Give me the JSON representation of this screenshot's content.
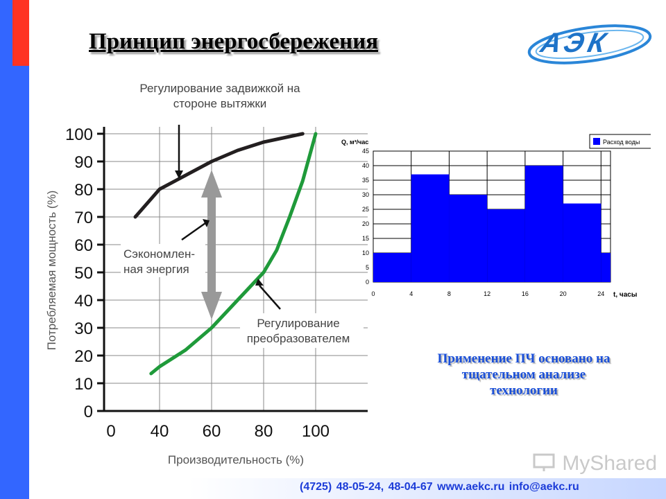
{
  "slide": {
    "title": "Принцип энергосбережения",
    "logo_text": "АЭК",
    "note_lines": [
      "Применение ПЧ основано на",
      "тщательном анализе",
      "технологии"
    ],
    "footer": "(4725) 48-05-24, 48-04-67    www.aekc.ru    info@aekc.ru",
    "watermark": "MyShared",
    "colors": {
      "left_bar": "#3366ff",
      "accent": "#ff3322",
      "note": "#1a4fd8",
      "footer_text": "#1c3cd8"
    }
  },
  "chart_data": [
    {
      "type": "line",
      "xlabel": "Производительность (%)",
      "ylabel": "Потребляемая мощность (%)",
      "x_ticks": [
        0,
        40,
        60,
        80,
        100
      ],
      "y_ticks": [
        0,
        10,
        20,
        30,
        40,
        50,
        60,
        70,
        80,
        90,
        100
      ],
      "xlim": [
        0,
        100
      ],
      "ylim": [
        0,
        100
      ],
      "grid": true,
      "series": [
        {
          "color": "#231f20",
          "points": [
            [
              20,
              70
            ],
            [
              30,
              75
            ],
            [
              40,
              80
            ],
            [
              50,
              85
            ],
            [
              60,
              90
            ],
            [
              70,
              94
            ],
            [
              80,
              97
            ],
            [
              90,
              99
            ],
            [
              95,
              100
            ]
          ]
        },
        {
          "color": "#1f9a3a",
          "points": [
            [
              33,
              13.5
            ],
            [
              40,
              16
            ],
            [
              50,
              22
            ],
            [
              60,
              30
            ],
            [
              70,
              40
            ],
            [
              80,
              50
            ],
            [
              85,
              58
            ],
            [
              90,
              70
            ],
            [
              95,
              83
            ],
            [
              100,
              100
            ]
          ]
        }
      ],
      "annotations": {
        "throttle": "Регулирование задвижкой на стороне вытяжки",
        "saved": "Сэкономлен- ная энергия",
        "vfd": "Регулирование преобразователем"
      }
    },
    {
      "type": "bar",
      "ylabel": "Q, м³/час",
      "xlabel": "t, часы",
      "legend": "Расход воды",
      "legend_position": "top-right",
      "x_ticks": [
        0,
        4,
        8,
        12,
        16,
        20,
        24
      ],
      "y_ticks": [
        0,
        5,
        10,
        15,
        20,
        25,
        30,
        35,
        40,
        45
      ],
      "xlim": [
        0,
        25
      ],
      "ylim": [
        0,
        45
      ],
      "grid": true,
      "color": "#0000ff",
      "segments": [
        {
          "x0": 0,
          "x1": 4,
          "value": 10
        },
        {
          "x0": 4,
          "x1": 8,
          "value": 37
        },
        {
          "x0": 8,
          "x1": 12,
          "value": 30
        },
        {
          "x0": 12,
          "x1": 16,
          "value": 25
        },
        {
          "x0": 16,
          "x1": 20,
          "value": 40
        },
        {
          "x0": 20,
          "x1": 24,
          "value": 27
        },
        {
          "x0": 24,
          "x1": 25,
          "value": 10
        }
      ]
    }
  ]
}
